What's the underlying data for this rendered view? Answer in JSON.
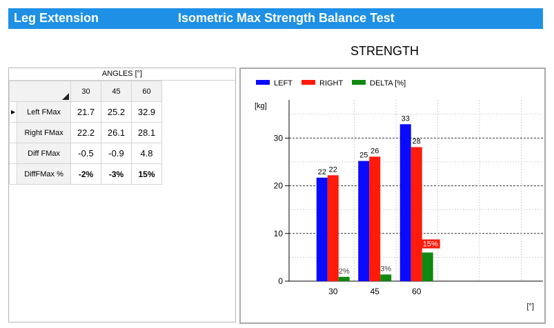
{
  "header": {
    "title_left": "Leg Extension",
    "title_center": "Isometric Max Strength Balance Test"
  },
  "table": {
    "group_header": "ANGLES [°]",
    "columns": [
      "30",
      "45",
      "60"
    ],
    "rows": [
      {
        "label": "Left FMax",
        "values": [
          "21.7",
          "25.2",
          "32.9"
        ]
      },
      {
        "label": "Right FMax",
        "values": [
          "22.2",
          "26.1",
          "28.1"
        ]
      },
      {
        "label": "Diff FMax",
        "values": [
          "-0.5",
          "-0.9",
          "4.8"
        ]
      },
      {
        "label": "DiffFMax %",
        "values": [
          "-2%",
          "-3%",
          "15%"
        ]
      }
    ]
  },
  "colors": {
    "header_bg": "#1e90e6",
    "left": "#0a0aff",
    "right": "#ff1a0a",
    "delta": "#118811"
  },
  "chart_data": {
    "type": "bar",
    "title": "STRENGTH",
    "ylabel": "[kg]",
    "xlabel": "[°]",
    "categories": [
      "30",
      "45",
      "60"
    ],
    "ylim": [
      0,
      38
    ],
    "yticks": [
      0,
      10,
      20,
      30
    ],
    "legend_position": "top-left",
    "series": [
      {
        "name": "LEFT",
        "color": "#0a0aff",
        "values": [
          21.7,
          25.2,
          32.9
        ],
        "labels": [
          "22",
          "25",
          "33"
        ]
      },
      {
        "name": "RIGHT",
        "color": "#ff1a0a",
        "values": [
          22.2,
          26.1,
          28.1
        ],
        "labels": [
          "22",
          "26",
          "28"
        ]
      },
      {
        "name": "DELTA [%]",
        "color": "#118811",
        "values": [
          0.9,
          1.4,
          6.0
        ],
        "labels": [
          "2%",
          "3%",
          "15%"
        ]
      }
    ]
  }
}
